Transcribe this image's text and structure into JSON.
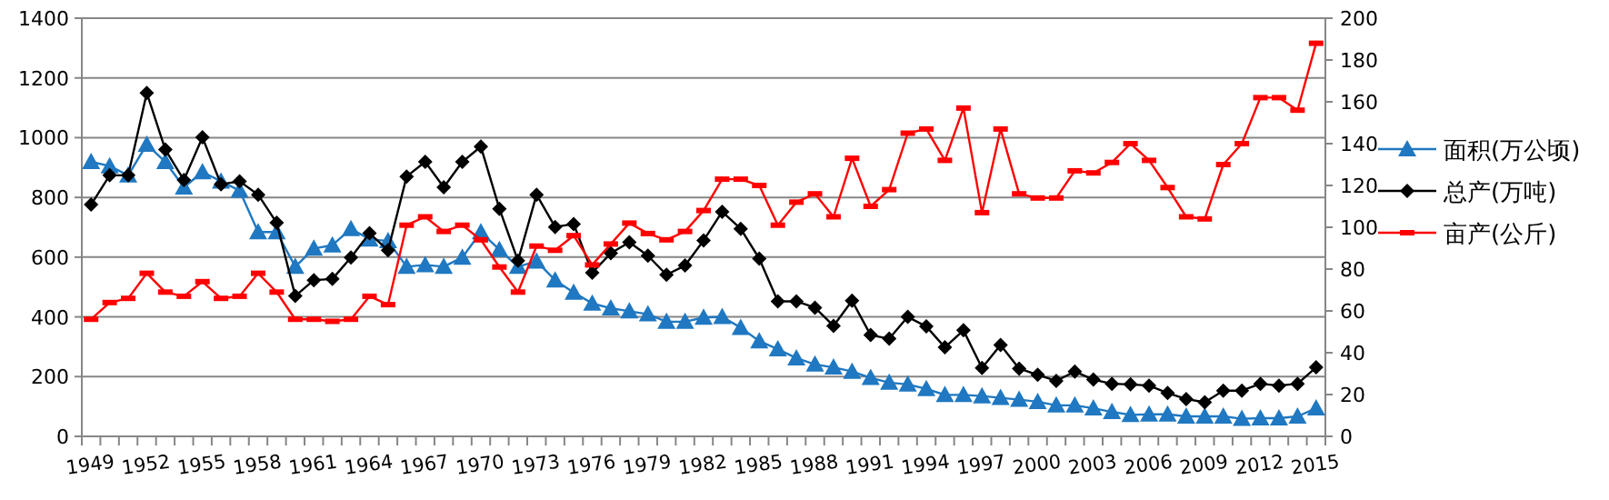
{
  "chart_data": {
    "type": "line",
    "categories": [
      "1949",
      null,
      null,
      "1952",
      null,
      null,
      "1955",
      null,
      null,
      "1958",
      null,
      null,
      "1961",
      null,
      null,
      "1964",
      null,
      null,
      "1967",
      null,
      null,
      "1970",
      null,
      null,
      "1973",
      null,
      null,
      "1976",
      null,
      null,
      "1979",
      null,
      null,
      "1982",
      null,
      null,
      "1985",
      null,
      null,
      "1988",
      null,
      null,
      "1991",
      null,
      null,
      "1994",
      null,
      null,
      "1997",
      null,
      null,
      "2000",
      null,
      null,
      "2003",
      null,
      null,
      "2006",
      null,
      null,
      "2009",
      null,
      null,
      "2012",
      null,
      null,
      "2015"
    ],
    "series": [
      {
        "name": "面积(万公顷)",
        "color": "#1f78c1",
        "marker": "triangle",
        "values": [
          919,
          905,
          874,
          977,
          919,
          834,
          885,
          854,
          823,
          684,
          684,
          568,
          629,
          640,
          695,
          660,
          654,
          568,
          574,
          568,
          599,
          684,
          625,
          568,
          586,
          523,
          482,
          445,
          429,
          419,
          409,
          384,
          384,
          398,
          400,
          364,
          319,
          292,
          262,
          241,
          231,
          217,
          196,
          180,
          174,
          159,
          139,
          139,
          135,
          129,
          123,
          116,
          104,
          104,
          94,
          82,
          72,
          74,
          74,
          67,
          67,
          67,
          59,
          61,
          61,
          67,
          94
        ]
      },
      {
        "name": "总产(万吨)",
        "color": "#000000",
        "marker": "diamond",
        "values": [
          776,
          874,
          874,
          1150,
          960,
          858,
          1001,
          844,
          854,
          809,
          715,
          470,
          523,
          527,
          599,
          680,
          623,
          870,
          919,
          834,
          919,
          970,
          762,
          588,
          809,
          701,
          711,
          548,
          613,
          650,
          605,
          541,
          572,
          656,
          752,
          695,
          595,
          452,
          452,
          431,
          370,
          454,
          339,
          327,
          400,
          368,
          298,
          355,
          229,
          306,
          227,
          206,
          186,
          217,
          190,
          176,
          174,
          170,
          145,
          125,
          114,
          153,
          153,
          176,
          170,
          176,
          231
        ]
      },
      {
        "name": "亩产(公斤)",
        "color": "#ff0000",
        "marker": "square",
        "axis": "y2",
        "values": [
          56,
          64,
          66,
          78,
          69,
          67,
          74,
          66,
          67,
          78,
          69,
          56,
          56,
          55,
          56,
          67,
          63,
          101,
          105,
          98,
          101,
          94,
          81,
          69,
          91,
          89,
          96,
          82,
          92,
          102,
          97,
          94,
          98,
          108,
          123,
          123,
          120,
          101,
          112,
          116,
          105,
          133,
          110,
          118,
          145,
          147,
          132,
          157,
          107,
          147,
          116,
          114,
          114,
          127,
          126,
          131,
          140,
          132,
          119,
          105,
          104,
          130,
          140,
          162,
          162,
          156,
          188
        ]
      }
    ],
    "ylim": [
      0,
      1400
    ],
    "yticks": [
      0,
      200,
      400,
      600,
      800,
      1000,
      1200,
      1400
    ],
    "y2lim": [
      0,
      200
    ],
    "y2ticks": [
      0,
      20,
      40,
      60,
      80,
      100,
      120,
      140,
      160,
      180,
      200
    ],
    "grid": "y",
    "legend": "right"
  }
}
